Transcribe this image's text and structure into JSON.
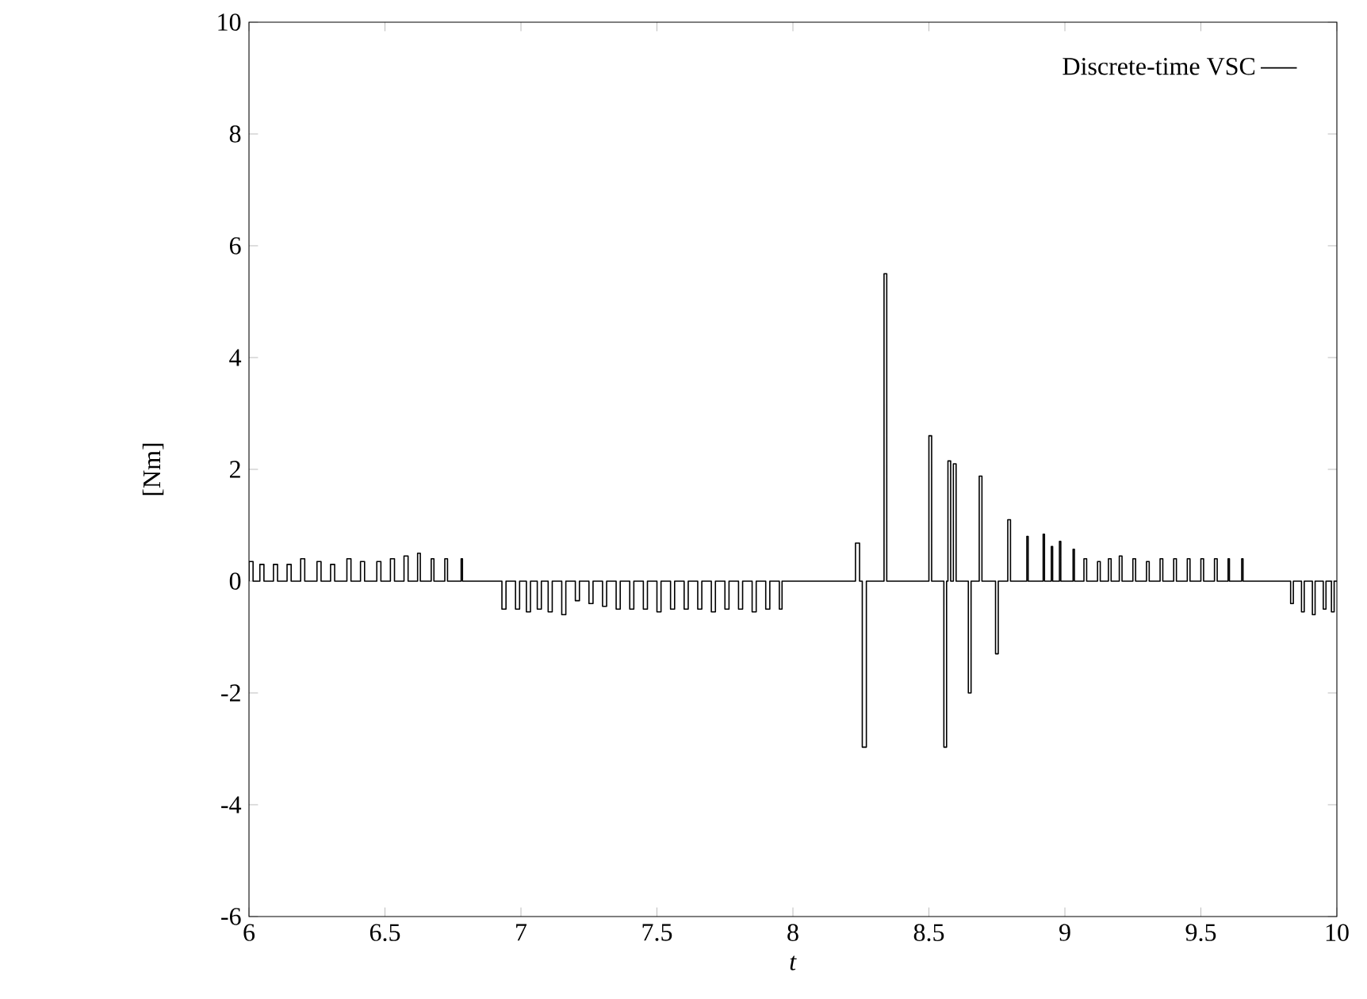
{
  "chart_data": {
    "type": "line",
    "xlabel": "*t*",
    "ylabel": "[Nm]",
    "legend": "top right",
    "xlim": [
      6,
      10
    ],
    "ylim": [
      -6,
      10
    ],
    "xticks": [
      6,
      6.5,
      7,
      7.5,
      8,
      8.5,
      9,
      9.5,
      10
    ],
    "yticks": [
      -6,
      -4,
      -2,
      0,
      2,
      4,
      6,
      8,
      10
    ],
    "x": [
      6.0,
      6.0,
      6.015,
      6.015,
      6.04,
      6.04,
      6.055,
      6.055,
      6.09,
      6.09,
      6.105,
      6.105,
      6.14,
      6.14,
      6.155,
      6.155,
      6.19,
      6.19,
      6.205,
      6.205,
      6.25,
      6.25,
      6.265,
      6.265,
      6.3,
      6.3,
      6.315,
      6.315,
      6.36,
      6.36,
      6.375,
      6.375,
      6.41,
      6.41,
      6.425,
      6.425,
      6.47,
      6.47,
      6.485,
      6.485,
      6.52,
      6.52,
      6.535,
      6.535,
      6.57,
      6.57,
      6.585,
      6.585,
      6.62,
      6.62,
      6.63,
      6.63,
      6.67,
      6.67,
      6.68,
      6.68,
      6.72,
      6.72,
      6.73,
      6.73,
      6.78,
      6.78,
      6.785,
      6.785,
      6.93,
      6.93,
      6.945,
      6.945,
      6.98,
      6.98,
      6.995,
      6.995,
      7.02,
      7.02,
      7.035,
      7.035,
      7.06,
      7.06,
      7.075,
      7.075,
      7.1,
      7.1,
      7.115,
      7.115,
      7.15,
      7.15,
      7.165,
      7.165,
      7.2,
      7.2,
      7.215,
      7.215,
      7.25,
      7.25,
      7.265,
      7.265,
      7.3,
      7.3,
      7.315,
      7.315,
      7.35,
      7.35,
      7.365,
      7.365,
      7.4,
      7.4,
      7.415,
      7.415,
      7.45,
      7.45,
      7.465,
      7.465,
      7.5,
      7.5,
      7.515,
      7.515,
      7.55,
      7.55,
      7.565,
      7.565,
      7.6,
      7.6,
      7.615,
      7.615,
      7.65,
      7.65,
      7.665,
      7.665,
      7.7,
      7.7,
      7.715,
      7.715,
      7.75,
      7.75,
      7.765,
      7.765,
      7.8,
      7.8,
      7.815,
      7.815,
      7.85,
      7.85,
      7.865,
      7.865,
      7.9,
      7.9,
      7.915,
      7.915,
      7.95,
      7.95,
      7.96,
      7.96,
      8.23,
      8.23,
      8.245,
      8.245,
      8.255,
      8.255,
      8.27,
      8.27,
      8.335,
      8.335,
      8.345,
      8.345,
      8.5,
      8.5,
      8.51,
      8.51,
      8.555,
      8.555,
      8.565,
      8.565,
      8.57,
      8.57,
      8.58,
      8.58,
      8.59,
      8.59,
      8.6,
      8.6,
      8.645,
      8.645,
      8.655,
      8.655,
      8.685,
      8.685,
      8.695,
      8.695,
      8.745,
      8.745,
      8.755,
      8.755,
      8.79,
      8.79,
      8.8,
      8.8,
      8.86,
      8.86,
      8.865,
      8.865,
      8.92,
      8.92,
      8.925,
      8.925,
      8.95,
      8.95,
      8.955,
      8.955,
      8.98,
      8.98,
      8.985,
      8.985,
      9.03,
      9.03,
      9.035,
      9.035,
      9.07,
      9.07,
      9.08,
      9.08,
      9.12,
      9.12,
      9.13,
      9.13,
      9.16,
      9.16,
      9.17,
      9.17,
      9.2,
      9.2,
      9.21,
      9.21,
      9.25,
      9.25,
      9.26,
      9.26,
      9.3,
      9.3,
      9.31,
      9.31,
      9.35,
      9.35,
      9.36,
      9.36,
      9.4,
      9.4,
      9.41,
      9.41,
      9.45,
      9.45,
      9.46,
      9.46,
      9.5,
      9.5,
      9.51,
      9.51,
      9.55,
      9.55,
      9.56,
      9.56,
      9.6,
      9.6,
      9.605,
      9.605,
      9.65,
      9.65,
      9.655,
      9.655,
      9.83,
      9.83,
      9.84,
      9.84,
      9.87,
      9.87,
      9.88,
      9.88,
      9.91,
      9.91,
      9.92,
      9.92,
      9.95,
      9.95,
      9.96,
      9.96,
      9.98,
      9.98,
      9.99,
      9.99,
      10
    ],
    "series": [
      {
        "name": "Discrete-time VSC",
        "color": "#000000",
        "values": [
          0,
          0.35,
          0.35,
          0,
          0,
          0.3,
          0.3,
          0,
          0,
          0.3,
          0.3,
          0,
          0,
          0.3,
          0.3,
          0,
          0,
          0.4,
          0.4,
          0,
          0,
          0.35,
          0.35,
          0,
          0,
          0.3,
          0.3,
          0,
          0,
          0.4,
          0.4,
          0,
          0,
          0.35,
          0.35,
          0,
          0,
          0.35,
          0.35,
          0,
          0,
          0.4,
          0.4,
          0,
          0,
          0.45,
          0.45,
          0,
          0,
          0.5,
          0.5,
          0,
          0,
          0.4,
          0.4,
          0,
          0,
          0.4,
          0.4,
          0,
          0,
          0.4,
          0.4,
          0,
          0,
          -0.5,
          -0.5,
          0,
          0,
          -0.5,
          -0.5,
          0,
          0,
          -0.55,
          -0.55,
          0,
          0,
          -0.5,
          -0.5,
          0,
          0,
          -0.55,
          -0.55,
          0,
          0,
          -0.6,
          -0.6,
          0,
          0,
          -0.35,
          -0.35,
          0,
          0,
          -0.4,
          -0.4,
          0,
          0,
          -0.45,
          -0.45,
          0,
          0,
          -0.5,
          -0.5,
          0,
          0,
          -0.5,
          -0.5,
          0,
          0,
          -0.5,
          -0.5,
          0,
          0,
          -0.55,
          -0.55,
          0,
          0,
          -0.5,
          -0.5,
          0,
          0,
          -0.5,
          -0.5,
          0,
          0,
          -0.5,
          -0.5,
          0,
          0,
          -0.55,
          -0.55,
          0,
          0,
          -0.5,
          -0.5,
          0,
          0,
          -0.5,
          -0.5,
          0,
          0,
          -0.55,
          -0.55,
          0,
          0,
          -0.5,
          -0.5,
          0,
          0,
          -0.5,
          -0.5,
          0,
          0,
          0.68,
          0.68,
          0,
          0,
          -2.97,
          -2.97,
          0,
          0,
          5.5,
          5.5,
          0,
          0,
          2.6,
          2.6,
          0,
          0,
          -2.97,
          -2.97,
          0,
          0,
          2.15,
          2.15,
          0,
          0,
          2.1,
          2.1,
          0,
          0,
          -2.0,
          -2.0,
          0,
          0,
          1.88,
          1.88,
          0,
          0,
          -1.3,
          -1.3,
          0,
          0,
          1.1,
          1.1,
          0,
          0,
          0.8,
          0.8,
          0,
          0,
          0.84,
          0.84,
          0,
          0,
          0.62,
          0.62,
          0,
          0,
          0.71,
          0.71,
          0,
          0,
          0.57,
          0.57,
          0,
          0,
          0.4,
          0.4,
          0,
          0,
          0.35,
          0.35,
          0,
          0,
          0.4,
          0.4,
          0,
          0,
          0.45,
          0.45,
          0,
          0,
          0.4,
          0.4,
          0,
          0,
          0.35,
          0.35,
          0,
          0,
          0.4,
          0.4,
          0,
          0,
          0.4,
          0.4,
          0,
          0,
          0.4,
          0.4,
          0,
          0,
          0.4,
          0.4,
          0,
          0,
          0.4,
          0.4,
          0,
          0,
          0.4,
          0.4,
          0,
          0,
          0.4,
          0.4,
          0,
          0,
          -0.4,
          -0.4,
          0,
          0,
          -0.55,
          -0.55,
          0,
          0,
          -0.6,
          -0.6,
          0,
          0,
          -0.5,
          -0.5,
          0,
          0,
          -0.55,
          -0.55,
          0,
          0
        ]
      }
    ]
  }
}
